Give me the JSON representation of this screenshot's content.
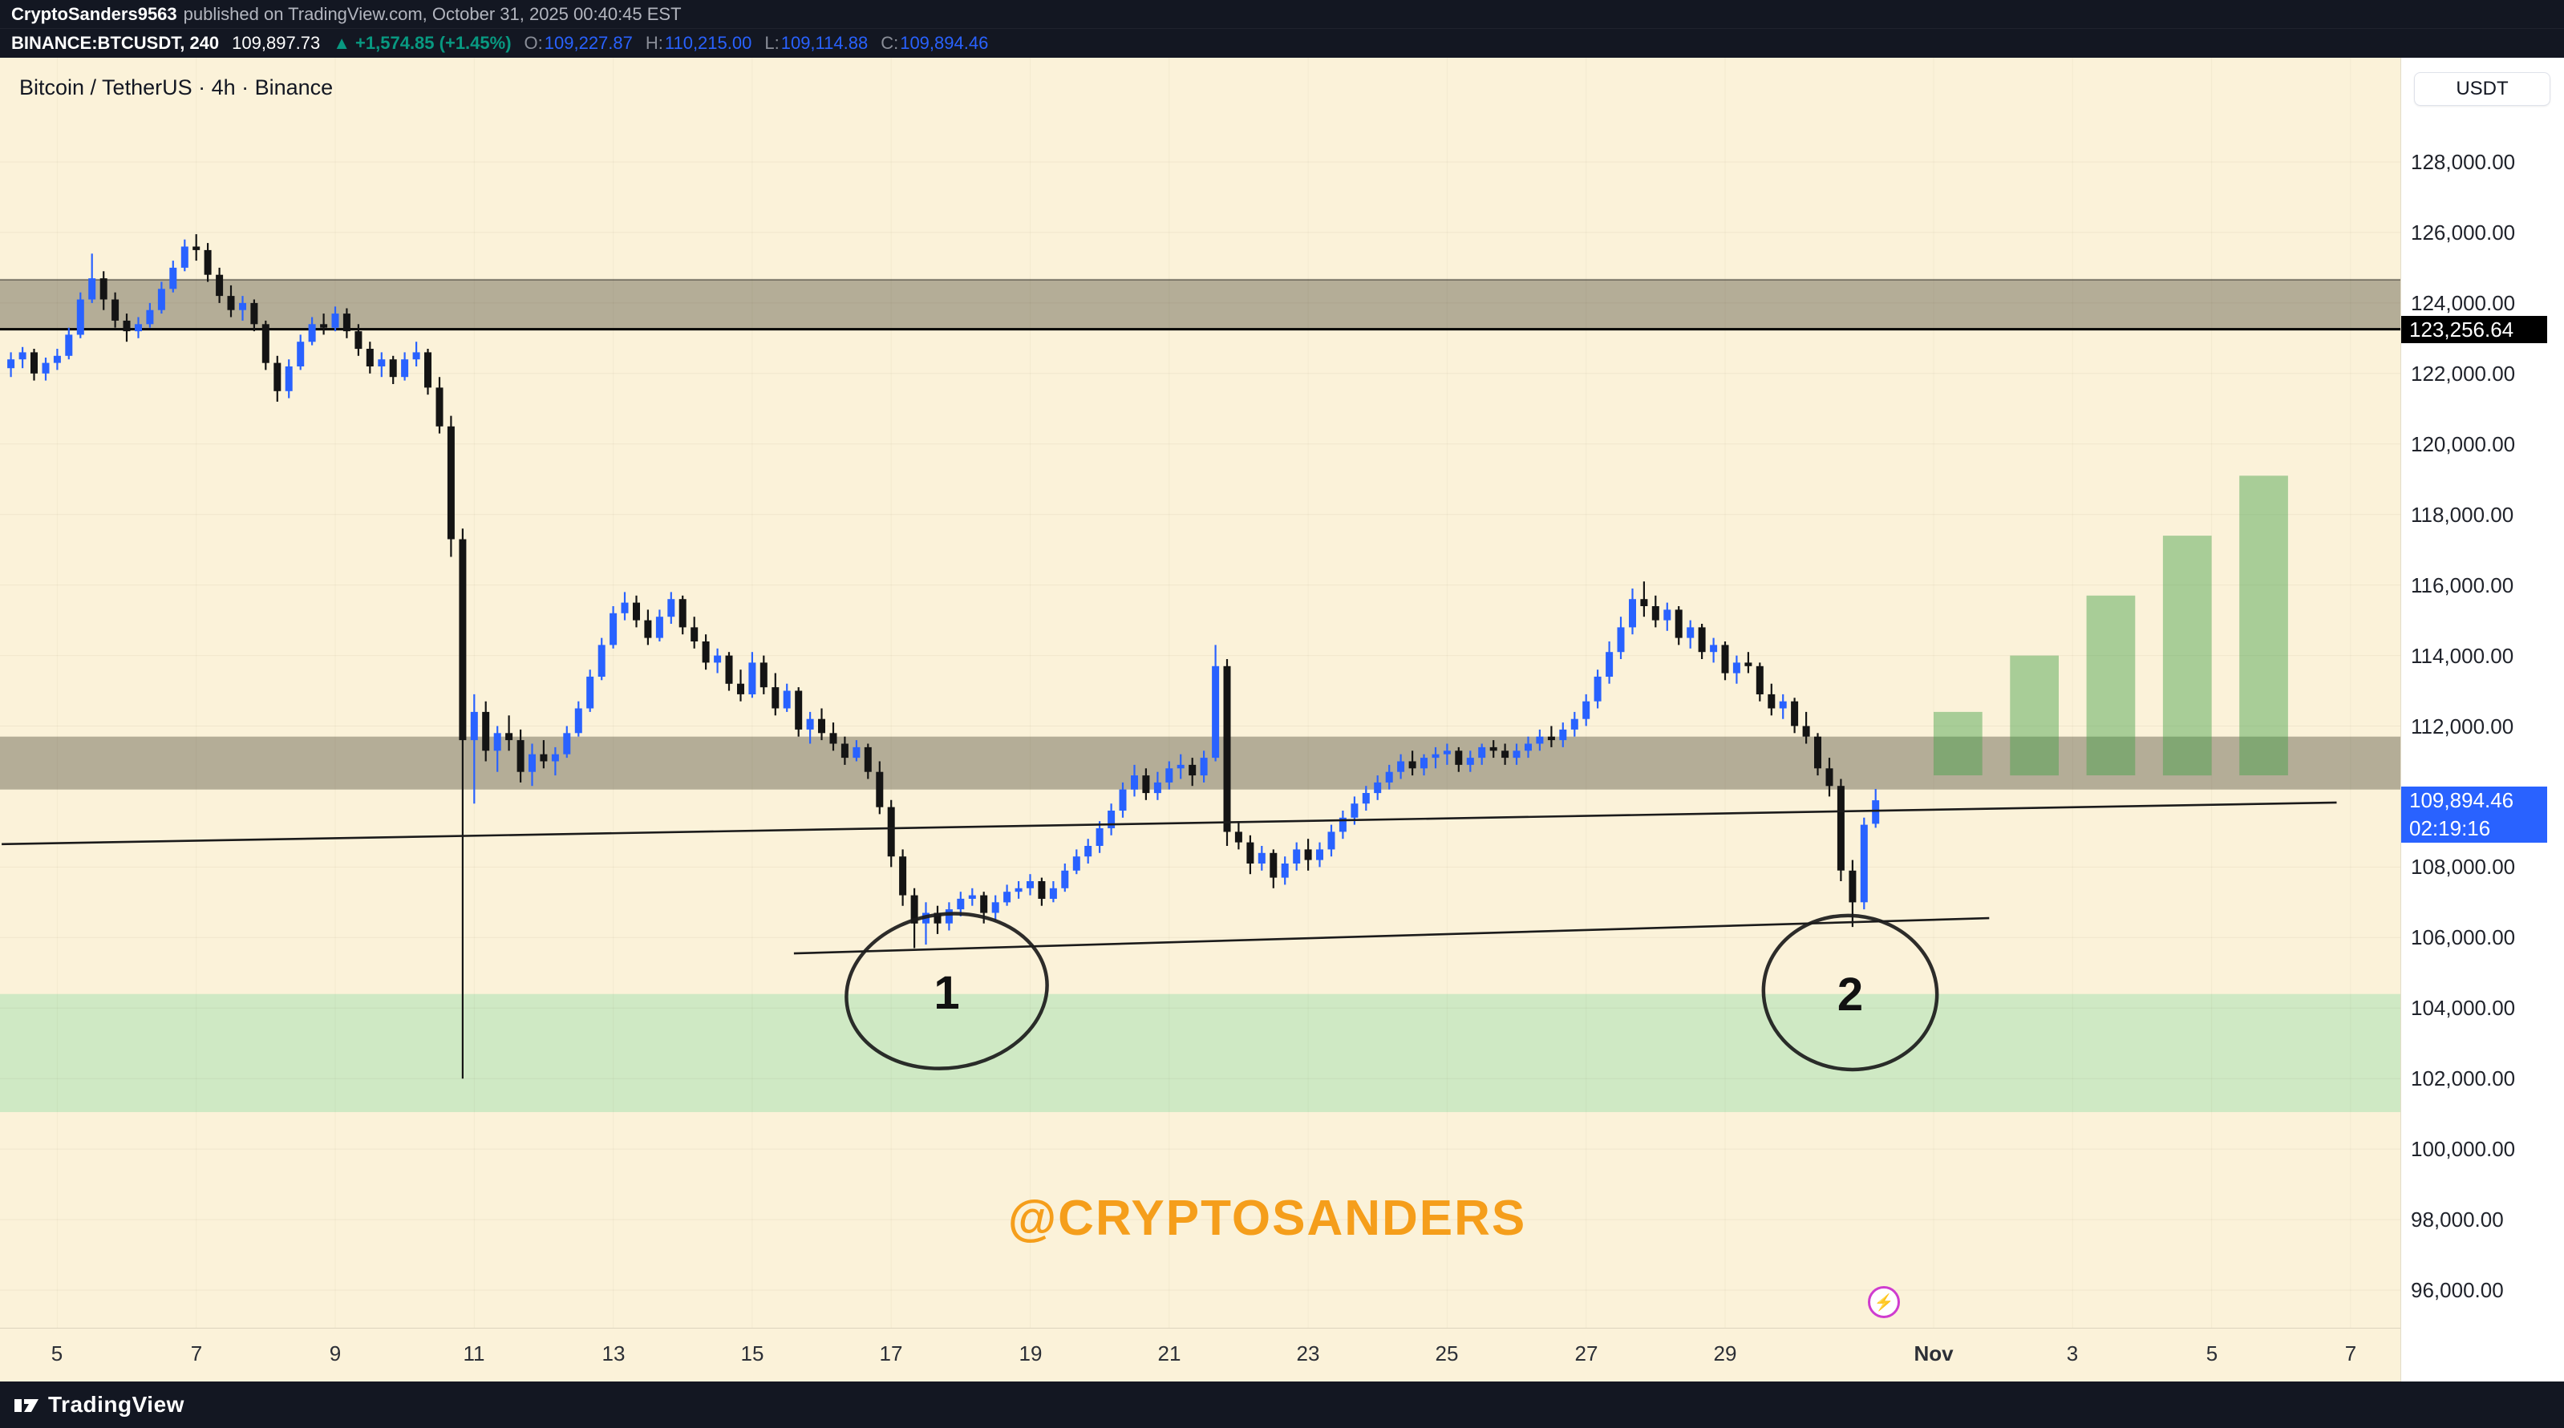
{
  "publisher": {
    "author": "CryptoSanders9563",
    "rest": "published on TradingView.com, October 31, 2025 00:40:45 EST"
  },
  "header": {
    "symbol": "BINANCE:BTCUSDT, 240",
    "last_price": "109,897.73",
    "arrow_icon": "▲",
    "change": "+1,574.85 (+1.45%)",
    "ohlc": [
      {
        "label": "O:",
        "value": "109,227.87"
      },
      {
        "label": "H:",
        "value": "110,215.00"
      },
      {
        "label": "L:",
        "value": "109,114.88"
      },
      {
        "label": "C:",
        "value": "109,894.46"
      }
    ]
  },
  "chart": {
    "title": "Bitcoin / TetherUS · 4h · Binance",
    "currency_button": "USDT",
    "watermark": "@CRYPTOSANDERS",
    "price_label_black": "123,256.64",
    "price_label_blue": {
      "price": "109,894.46",
      "countdown": "02:19:16"
    },
    "reaction_icon": "⚡"
  },
  "axes": {
    "price_ticks": [
      {
        "label": "128,000.00",
        "value": 128000
      },
      {
        "label": "126,000.00",
        "value": 126000
      },
      {
        "label": "124,000.00",
        "value": 124000
      },
      {
        "label": "122,000.00",
        "value": 122000
      },
      {
        "label": "120,000.00",
        "value": 120000
      },
      {
        "label": "118,000.00",
        "value": 118000
      },
      {
        "label": "116,000.00",
        "value": 116000
      },
      {
        "label": "114,000.00",
        "value": 114000
      },
      {
        "label": "112,000.00",
        "value": 112000
      },
      {
        "label": "108,000.00",
        "value": 108000
      },
      {
        "label": "106,000.00",
        "value": 106000
      },
      {
        "label": "104,000.00",
        "value": 104000
      },
      {
        "label": "102,000.00",
        "value": 102000
      },
      {
        "label": "100,000.00",
        "value": 100000
      },
      {
        "label": "98,000.00",
        "value": 98000
      },
      {
        "label": "96,000.00",
        "value": 96000
      }
    ],
    "time_ticks": [
      {
        "label": "5",
        "day": 5
      },
      {
        "label": "7",
        "day": 7
      },
      {
        "label": "9",
        "day": 9
      },
      {
        "label": "11",
        "day": 11
      },
      {
        "label": "13",
        "day": 13
      },
      {
        "label": "15",
        "day": 15
      },
      {
        "label": "17",
        "day": 17
      },
      {
        "label": "19",
        "day": 19
      },
      {
        "label": "21",
        "day": 21
      },
      {
        "label": "23",
        "day": 23
      },
      {
        "label": "25",
        "day": 25
      },
      {
        "label": "27",
        "day": 27
      },
      {
        "label": "29",
        "day": 29
      },
      {
        "label": "Nov",
        "day": 32,
        "bold": true
      },
      {
        "label": "3",
        "day": 34
      },
      {
        "label": "5",
        "day": 36
      },
      {
        "label": "7",
        "day": 38
      }
    ]
  },
  "footer": {
    "brand": "TradingView"
  },
  "colors": {
    "candle_up": "#2962FF",
    "candle_down": "#141414",
    "change_up": "#089981",
    "ohlc_value": "#2962FF",
    "accent_orange": "#F59E1B",
    "price_label_bg": "#2962FF",
    "level_label_bg": "#000000",
    "zone_gray": "#b4ad97",
    "zone_green": "#cfe9c4",
    "projection_green": "rgba(67,160,71,0.45)",
    "background_cream": "#FBF2D9",
    "chrome_dark": "#131722",
    "annotation_ink": "#1b1b1b"
  },
  "chart_data": {
    "type": "candlestick",
    "symbol": "BTCUSDT",
    "exchange": "Binance",
    "interval": "4h",
    "start": "2025-10-04 08:00 UTC",
    "start_day": 4.3333,
    "step_days": 0.1666667,
    "ylim": [
      94900,
      131000
    ],
    "xlim_days": [
      4.2,
      39.5
    ],
    "current_price": 109894.46,
    "level_price": 123256.64,
    "zones": [
      {
        "name": "resistance-upper",
        "price_top": 124660,
        "price_bottom": 123256.64,
        "color": "#b4ad97"
      },
      {
        "name": "resistance-mid",
        "price_top": 111700,
        "price_bottom": 110200,
        "color": "#b4ad97"
      },
      {
        "name": "support-green",
        "price_top": 104400,
        "price_bottom": 101050,
        "color": "#cfe9c4"
      }
    ],
    "levels": [
      {
        "price": 124660,
        "color": "rgba(0,0,0,0.40)",
        "width": 2
      },
      {
        "price": 123256.64,
        "color": "#000000",
        "width": 3
      }
    ],
    "trendlines": [
      {
        "x1_day": 15.6,
        "y1_price": 105550,
        "x2_day": 32.8,
        "y2_price": 106550
      },
      {
        "x1_day": 4.2,
        "y1_price": 108650,
        "x2_day": 37.8,
        "y2_price": 109830
      }
    ],
    "projection_bars": [
      {
        "day_start": 32.0,
        "day_end": 32.7,
        "price_bottom": 110600,
        "price_top": 112400
      },
      {
        "day_start": 33.1,
        "day_end": 33.8,
        "price_bottom": 110600,
        "price_top": 114000
      },
      {
        "day_start": 34.2,
        "day_end": 34.9,
        "price_bottom": 110600,
        "price_top": 115700
      },
      {
        "day_start": 35.3,
        "day_end": 36.0,
        "price_bottom": 110600,
        "price_top": 117400
      },
      {
        "day_start": 36.4,
        "day_end": 37.1,
        "price_bottom": 110600,
        "price_top": 119100
      }
    ],
    "annotations": {
      "circles": [
        {
          "label": "1",
          "day": 17.8,
          "price": 104480,
          "rx_days": 1.45,
          "ry_price": 2180,
          "tilt": -8
        },
        {
          "label": "2",
          "day": 30.8,
          "price": 104440,
          "rx_days": 1.25,
          "ry_price": 2180,
          "tilt": 6
        }
      ]
    },
    "candles_ohlc": [
      [
        122150,
        122600,
        121900,
        122400
      ],
      [
        122400,
        122750,
        122150,
        122600
      ],
      [
        122600,
        122700,
        121800,
        122000
      ],
      [
        122000,
        122450,
        121800,
        122300
      ],
      [
        122300,
        122700,
        122100,
        122500
      ],
      [
        122500,
        123300,
        122400,
        123100
      ],
      [
        123100,
        124300,
        123000,
        124100
      ],
      [
        124100,
        125400,
        124000,
        124700
      ],
      [
        124700,
        124900,
        123800,
        124100
      ],
      [
        124100,
        124300,
        123300,
        123500
      ],
      [
        123500,
        123700,
        122900,
        123200
      ],
      [
        123200,
        123600,
        123000,
        123400
      ],
      [
        123400,
        124000,
        123300,
        123800
      ],
      [
        123800,
        124600,
        123700,
        124400
      ],
      [
        124400,
        125200,
        124300,
        125000
      ],
      [
        125000,
        125800,
        124900,
        125600
      ],
      [
        125600,
        125950,
        125200,
        125500
      ],
      [
        125500,
        125700,
        124600,
        124800
      ],
      [
        124800,
        125000,
        124000,
        124200
      ],
      [
        124200,
        124500,
        123600,
        123800
      ],
      [
        123800,
        124200,
        123500,
        124000
      ],
      [
        124000,
        124100,
        123200,
        123400
      ],
      [
        123400,
        123500,
        122100,
        122300
      ],
      [
        122300,
        122500,
        121200,
        121500
      ],
      [
        121500,
        122400,
        121300,
        122200
      ],
      [
        122200,
        123100,
        122100,
        122900
      ],
      [
        122900,
        123600,
        122800,
        123400
      ],
      [
        123400,
        123700,
        123100,
        123300
      ],
      [
        123300,
        123900,
        123200,
        123700
      ],
      [
        123700,
        123850,
        123000,
        123200
      ],
      [
        123200,
        123400,
        122500,
        122700
      ],
      [
        122700,
        122900,
        122000,
        122200
      ],
      [
        122200,
        122600,
        121900,
        122400
      ],
      [
        122400,
        122500,
        121700,
        121900
      ],
      [
        121900,
        122600,
        121800,
        122400
      ],
      [
        122400,
        122900,
        122200,
        122600
      ],
      [
        122600,
        122700,
        121400,
        121600
      ],
      [
        121600,
        121900,
        120300,
        120500
      ],
      [
        120500,
        120800,
        116800,
        117300
      ],
      [
        117300,
        117600,
        102000,
        111600
      ],
      [
        111600,
        112900,
        109800,
        112400
      ],
      [
        112400,
        112700,
        111000,
        111300
      ],
      [
        111300,
        112000,
        110700,
        111800
      ],
      [
        111800,
        112300,
        111300,
        111600
      ],
      [
        111600,
        111900,
        110400,
        110700
      ],
      [
        110700,
        111500,
        110300,
        111200
      ],
      [
        111200,
        111600,
        110800,
        111000
      ],
      [
        111000,
        111400,
        110600,
        111200
      ],
      [
        111200,
        112000,
        111100,
        111800
      ],
      [
        111800,
        112700,
        111700,
        112500
      ],
      [
        112500,
        113600,
        112400,
        113400
      ],
      [
        113400,
        114500,
        113300,
        114300
      ],
      [
        114300,
        115400,
        114200,
        115200
      ],
      [
        115200,
        115800,
        115000,
        115500
      ],
      [
        115500,
        115700,
        114800,
        115000
      ],
      [
        115000,
        115300,
        114300,
        114500
      ],
      [
        114500,
        115300,
        114400,
        115100
      ],
      [
        115100,
        115800,
        114900,
        115600
      ],
      [
        115600,
        115700,
        114600,
        114800
      ],
      [
        114800,
        115100,
        114200,
        114400
      ],
      [
        114400,
        114600,
        113600,
        113800
      ],
      [
        113800,
        114200,
        113500,
        114000
      ],
      [
        114000,
        114100,
        113000,
        113200
      ],
      [
        113200,
        113600,
        112700,
        112900
      ],
      [
        112900,
        114100,
        112800,
        113800
      ],
      [
        113800,
        114000,
        112900,
        113100
      ],
      [
        113100,
        113500,
        112300,
        112500
      ],
      [
        112500,
        113200,
        112400,
        113000
      ],
      [
        113000,
        113100,
        111700,
        111900
      ],
      [
        111900,
        112400,
        111500,
        112200
      ],
      [
        112200,
        112500,
        111600,
        111800
      ],
      [
        111800,
        112100,
        111300,
        111500
      ],
      [
        111500,
        111700,
        110900,
        111100
      ],
      [
        111100,
        111600,
        111000,
        111400
      ],
      [
        111400,
        111500,
        110500,
        110700
      ],
      [
        110700,
        111000,
        109500,
        109700
      ],
      [
        109700,
        109900,
        108000,
        108300
      ],
      [
        108300,
        108500,
        106900,
        107200
      ],
      [
        107200,
        107400,
        105700,
        106400
      ],
      [
        106400,
        107000,
        105800,
        106700
      ],
      [
        106700,
        106900,
        106100,
        106400
      ],
      [
        106400,
        107000,
        106200,
        106800
      ],
      [
        106800,
        107300,
        106600,
        107100
      ],
      [
        107100,
        107400,
        106900,
        107200
      ],
      [
        107200,
        107300,
        106400,
        106700
      ],
      [
        106700,
        107200,
        106500,
        107000
      ],
      [
        107000,
        107500,
        106900,
        107300
      ],
      [
        107300,
        107600,
        107100,
        107400
      ],
      [
        107400,
        107800,
        107200,
        107600
      ],
      [
        107600,
        107700,
        106900,
        107100
      ],
      [
        107100,
        107600,
        107000,
        107400
      ],
      [
        107400,
        108100,
        107300,
        107900
      ],
      [
        107900,
        108500,
        107800,
        108300
      ],
      [
        108300,
        108800,
        108100,
        108600
      ],
      [
        108600,
        109300,
        108400,
        109100
      ],
      [
        109100,
        109800,
        108900,
        109600
      ],
      [
        109600,
        110400,
        109400,
        110200
      ],
      [
        110200,
        110900,
        110000,
        110600
      ],
      [
        110600,
        110800,
        109900,
        110100
      ],
      [
        110100,
        110700,
        109900,
        110400
      ],
      [
        110400,
        111000,
        110200,
        110800
      ],
      [
        110800,
        111200,
        110500,
        110900
      ],
      [
        110900,
        111100,
        110300,
        110600
      ],
      [
        110600,
        111300,
        110400,
        111100
      ],
      [
        111100,
        114300,
        111000,
        113700
      ],
      [
        113700,
        113900,
        108600,
        109000
      ],
      [
        109000,
        109300,
        108500,
        108700
      ],
      [
        108700,
        108900,
        107800,
        108100
      ],
      [
        108100,
        108600,
        107900,
        108400
      ],
      [
        108400,
        108500,
        107400,
        107700
      ],
      [
        107700,
        108300,
        107500,
        108100
      ],
      [
        108100,
        108700,
        107900,
        108500
      ],
      [
        108500,
        108800,
        107900,
        108200
      ],
      [
        108200,
        108700,
        108000,
        108500
      ],
      [
        108500,
        109200,
        108300,
        109000
      ],
      [
        109000,
        109600,
        108800,
        109400
      ],
      [
        109400,
        110000,
        109200,
        109800
      ],
      [
        109800,
        110300,
        109600,
        110100
      ],
      [
        110100,
        110600,
        109900,
        110400
      ],
      [
        110400,
        110900,
        110200,
        110700
      ],
      [
        110700,
        111200,
        110500,
        111000
      ],
      [
        111000,
        111300,
        110600,
        110800
      ],
      [
        110800,
        111200,
        110600,
        111100
      ],
      [
        111100,
        111400,
        110800,
        111200
      ],
      [
        111200,
        111500,
        110900,
        111300
      ],
      [
        111300,
        111400,
        110700,
        110900
      ],
      [
        110900,
        111300,
        110700,
        111100
      ],
      [
        111100,
        111500,
        110900,
        111400
      ],
      [
        111400,
        111600,
        111100,
        111300
      ],
      [
        111300,
        111500,
        110900,
        111100
      ],
      [
        111100,
        111500,
        110900,
        111300
      ],
      [
        111300,
        111700,
        111100,
        111500
      ],
      [
        111500,
        111900,
        111300,
        111700
      ],
      [
        111700,
        112000,
        111400,
        111600
      ],
      [
        111600,
        112100,
        111400,
        111900
      ],
      [
        111900,
        112400,
        111700,
        112200
      ],
      [
        112200,
        112900,
        112000,
        112700
      ],
      [
        112700,
        113600,
        112500,
        113400
      ],
      [
        113400,
        114400,
        113200,
        114100
      ],
      [
        114100,
        115100,
        113900,
        114800
      ],
      [
        114800,
        115900,
        114600,
        115600
      ],
      [
        115600,
        116100,
        115100,
        115400
      ],
      [
        115400,
        115700,
        114800,
        115000
      ],
      [
        115000,
        115500,
        114700,
        115300
      ],
      [
        115300,
        115400,
        114300,
        114500
      ],
      [
        114500,
        115000,
        114200,
        114800
      ],
      [
        114800,
        114900,
        113900,
        114100
      ],
      [
        114100,
        114500,
        113800,
        114300
      ],
      [
        114300,
        114400,
        113300,
        113500
      ],
      [
        113500,
        114000,
        113200,
        113800
      ],
      [
        113800,
        114100,
        113500,
        113700
      ],
      [
        113700,
        113800,
        112700,
        112900
      ],
      [
        112900,
        113200,
        112300,
        112500
      ],
      [
        112500,
        112900,
        112200,
        112700
      ],
      [
        112700,
        112800,
        111800,
        112000
      ],
      [
        112000,
        112400,
        111500,
        111700
      ],
      [
        111700,
        111800,
        110600,
        110800
      ],
      [
        110800,
        111100,
        110000,
        110300
      ],
      [
        110300,
        110500,
        107600,
        107900
      ],
      [
        107900,
        108200,
        106300,
        107000
      ],
      [
        107000,
        109400,
        106800,
        109200
      ],
      [
        109228,
        110215,
        109115,
        109894
      ]
    ]
  }
}
